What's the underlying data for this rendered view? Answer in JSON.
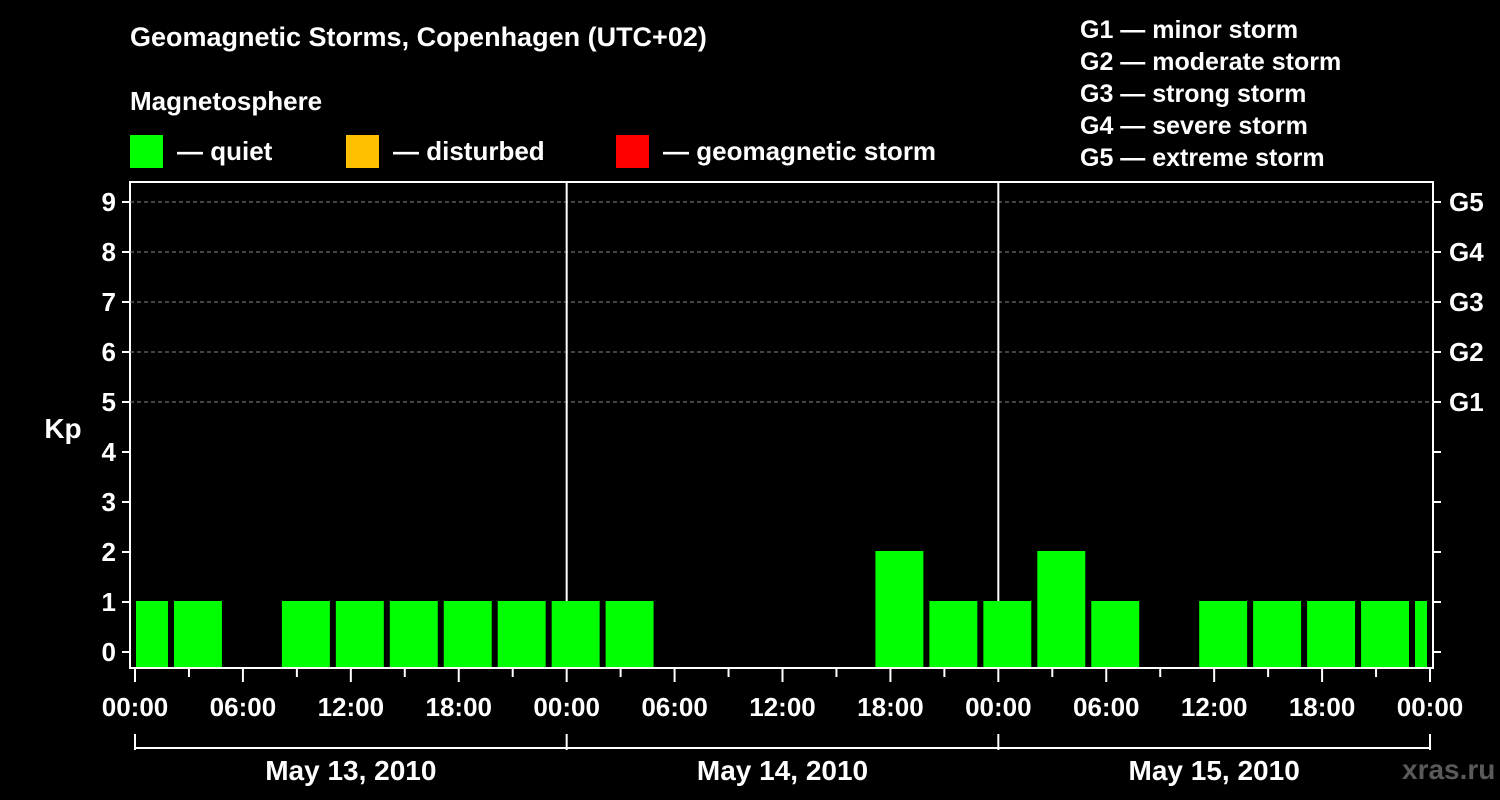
{
  "header": {
    "title": "Geomagnetic Storms, Copenhagen (UTC+02)",
    "subtitle": "Magnetosphere"
  },
  "legend": [
    {
      "label": "— quiet",
      "color": "#00ff00"
    },
    {
      "label": "— disturbed",
      "color": "#ffc000"
    },
    {
      "label": "— geomagnetic storm",
      "color": "#ff0000"
    }
  ],
  "storm_scale": [
    "G1 — minor storm",
    "G2 — moderate storm",
    "G3 — strong storm",
    "G4 — severe storm",
    "G5 — extreme storm"
  ],
  "watermark": "xras.ru",
  "chart_data": {
    "type": "bar",
    "title": "Geomagnetic Storms, Copenhagen (UTC+02)",
    "ylabel": "Kp",
    "ylim": [
      0,
      9
    ],
    "yticks": [
      "0",
      "1",
      "2",
      "3",
      "4",
      "5",
      "6",
      "7",
      "8",
      "9"
    ],
    "right_axis": [
      {
        "kp": 5,
        "label": "G1"
      },
      {
        "kp": 6,
        "label": "G2"
      },
      {
        "kp": 7,
        "label": "G3"
      },
      {
        "kp": 8,
        "label": "G4"
      },
      {
        "kp": 9,
        "label": "G5"
      }
    ],
    "x_tick_labels": [
      "00:00",
      "06:00",
      "12:00",
      "18:00",
      "00:00",
      "06:00",
      "12:00",
      "18:00",
      "00:00",
      "06:00",
      "12:00",
      "18:00",
      "00:00"
    ],
    "days": [
      "May 13, 2010",
      "May 14, 2010",
      "May 15, 2010"
    ],
    "bar_hours": 3,
    "start_offset_hours": -1,
    "color": "#00ff00",
    "values": [
      1,
      1,
      0,
      1,
      1,
      1,
      1,
      1,
      1,
      1,
      0,
      0,
      0,
      0,
      2,
      1,
      1,
      2,
      1,
      0,
      1,
      1,
      1,
      1,
      1
    ]
  }
}
